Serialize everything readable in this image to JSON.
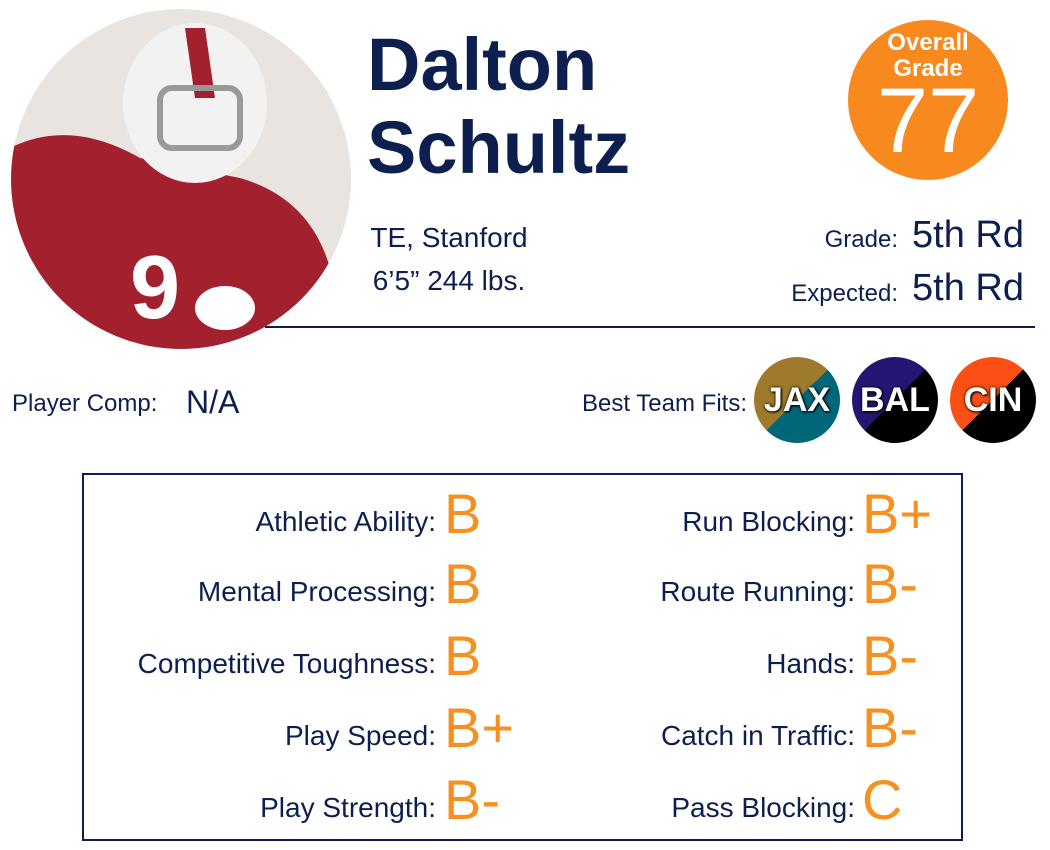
{
  "header": {
    "first_name": "Dalton",
    "last_name": "Schultz",
    "position_school": "TE, Stanford",
    "size": "6’5” 244 lbs.",
    "overall_label_1": "Overall",
    "overall_label_2": "Grade",
    "overall_grade": 77,
    "grade_label": "Grade:",
    "grade_value": "5th Rd",
    "expected_label": "Expected:",
    "expected_value": "5th Rd"
  },
  "comp": {
    "label": "Player Comp:",
    "value": "N/A"
  },
  "team_fits": {
    "label": "Best Team Fits:",
    "teams": [
      "JAX",
      "BAL",
      "CIN"
    ]
  },
  "grades": {
    "left": [
      {
        "label": "Athletic Ability:",
        "grade": "B"
      },
      {
        "label": "Mental Processing:",
        "grade": "B"
      },
      {
        "label": "Competitive Toughness:",
        "grade": "B"
      },
      {
        "label": "Play Speed:",
        "grade": "B+"
      },
      {
        "label": "Play Strength:",
        "grade": "B-"
      }
    ],
    "right": [
      {
        "label": "Run Blocking:",
        "grade": "B+"
      },
      {
        "label": "Route Running:",
        "grade": "B-"
      },
      {
        "label": "Hands:",
        "grade": "B-"
      },
      {
        "label": "Catch in Traffic:",
        "grade": "B-"
      },
      {
        "label": "Pass Blocking:",
        "grade": "C"
      }
    ]
  }
}
